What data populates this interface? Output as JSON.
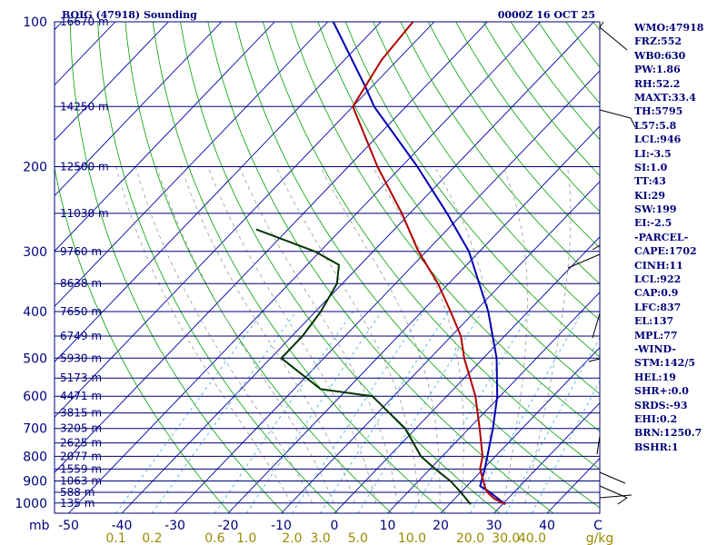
{
  "header": {
    "station": "BOIG (47918) Sounding",
    "time": "0000Z 16 OCT 25"
  },
  "indices": [
    "WMO:47918",
    "FRZ:552",
    "WB0:630",
    "PW:1.86",
    "RH:52.2",
    "MAXT:33.4",
    "TH:5795",
    "L57:5.8",
    "LCL:946",
    "LI:-3.5",
    "SI:1.0",
    "TT:43",
    "KI:29",
    "SW:199",
    "EI:-2.5",
    "-PARCEL-",
    "CAPE:1702",
    "CINH:11",
    "LCL:922",
    "CAP:0.9",
    "LFC:837",
    "EL:137",
    "MPL:77",
    "-WIND-",
    "STM:142/5",
    "HEL:19",
    "SHR+:0.0",
    "SRDS:-93",
    "EHI:0.2",
    "BRN:1250.7",
    "BSHR:1"
  ],
  "colors": {
    "frame": "#00007a",
    "temperature": "#b30000",
    "dewpoint": "#003300",
    "parcel": "#0000b3",
    "dry_adiabat": "#00a000",
    "moist_adiabat": "#999999",
    "mixing_ratio": "#33aadd",
    "isotherm": "#0000aa",
    "axis_text": "#00007a",
    "mixing_text": "#9a8a00"
  },
  "chart_data": {
    "type": "skew-t",
    "title": "BOIG (47918) Sounding",
    "pressure_unit": "mb",
    "pressure_ticks": [
      100,
      200,
      300,
      400,
      500,
      600,
      700,
      800,
      900,
      1000
    ],
    "temperature_ticks": [
      -50,
      -40,
      -30,
      -20,
      -10,
      0,
      10,
      20,
      30,
      40
    ],
    "x_end_label": "C",
    "mixing_ratio_unit": "g/kg",
    "mixing_ratio_ticks": [
      "0.1",
      "0.2",
      "0.6",
      "1.0",
      "2.0",
      "3.0",
      "5.0",
      "10.0",
      "20.0",
      "30.0",
      "40.0"
    ],
    "height_levels": [
      {
        "p": 100,
        "label": "16670 m"
      },
      {
        "p": 150,
        "label": "14250 m"
      },
      {
        "p": 200,
        "label": "12500 m"
      },
      {
        "p": 250,
        "label": "11030 m"
      },
      {
        "p": 300,
        "label": "9760 m"
      },
      {
        "p": 350,
        "label": "8638 m"
      },
      {
        "p": 400,
        "label": "7650 m"
      },
      {
        "p": 450,
        "label": "6749 m"
      },
      {
        "p": 500,
        "label": "5930 m"
      },
      {
        "p": 550,
        "label": "5173 m"
      },
      {
        "p": 600,
        "label": "4471 m"
      },
      {
        "p": 650,
        "label": "3815 m"
      },
      {
        "p": 700,
        "label": "3205 m"
      },
      {
        "p": 750,
        "label": "2625 m"
      },
      {
        "p": 800,
        "label": "2077 m"
      },
      {
        "p": 850,
        "label": "1559 m"
      },
      {
        "p": 900,
        "label": "1063 m"
      },
      {
        "p": 950,
        "label": "588 m"
      },
      {
        "p": 1000,
        "label": "135 m"
      }
    ],
    "temperature_profile": [
      {
        "p": 1006,
        "t": 30.5
      },
      {
        "p": 980,
        "t": 27.5
      },
      {
        "p": 950,
        "t": 25.0
      },
      {
        "p": 925,
        "t": 23.5
      },
      {
        "p": 900,
        "t": 22.2
      },
      {
        "p": 850,
        "t": 19.4
      },
      {
        "p": 800,
        "t": 17.6
      },
      {
        "p": 700,
        "t": 12.0
      },
      {
        "p": 600,
        "t": 5.4
      },
      {
        "p": 500,
        "t": -3.6
      },
      {
        "p": 450,
        "t": -8.2
      },
      {
        "p": 400,
        "t": -14.6
      },
      {
        "p": 350,
        "t": -22.0
      },
      {
        "p": 300,
        "t": -31.5
      },
      {
        "p": 250,
        "t": -41.5
      },
      {
        "p": 200,
        "t": -54.5
      },
      {
        "p": 150,
        "t": -70.0
      },
      {
        "p": 120,
        "t": -73.0
      },
      {
        "p": 100,
        "t": -74.0
      }
    ],
    "dewpoint_profile": [
      {
        "p": 1006,
        "t": 24.0
      },
      {
        "p": 950,
        "t": 20.0
      },
      {
        "p": 900,
        "t": 16.0
      },
      {
        "p": 850,
        "t": 11.0
      },
      {
        "p": 800,
        "t": 6.0
      },
      {
        "p": 700,
        "t": -2.0
      },
      {
        "p": 600,
        "t": -14.0
      },
      {
        "p": 580,
        "t": -25.0
      },
      {
        "p": 500,
        "t": -38.0
      },
      {
        "p": 450,
        "t": -38.0
      },
      {
        "p": 400,
        "t": -39.0
      },
      {
        "p": 350,
        "t": -41.0
      },
      {
        "p": 320,
        "t": -44.0
      },
      {
        "p": 300,
        "t": -51.0
      },
      {
        "p": 270,
        "t": -66.0
      }
    ],
    "parcel_profile": [
      {
        "p": 1006,
        "t": 30.5
      },
      {
        "p": 950,
        "t": 25.5
      },
      {
        "p": 922,
        "t": 22.5
      },
      {
        "p": 850,
        "t": 20.3
      },
      {
        "p": 800,
        "t": 18.5
      },
      {
        "p": 700,
        "t": 14.5
      },
      {
        "p": 600,
        "t": 9.5
      },
      {
        "p": 500,
        "t": 2.5
      },
      {
        "p": 400,
        "t": -7.5
      },
      {
        "p": 300,
        "t": -22.0
      },
      {
        "p": 250,
        "t": -33.0
      },
      {
        "p": 200,
        "t": -47.0
      },
      {
        "p": 150,
        "t": -66.0
      },
      {
        "p": 137,
        "t": -71.0
      },
      {
        "p": 100,
        "t": -89.0
      }
    ]
  }
}
